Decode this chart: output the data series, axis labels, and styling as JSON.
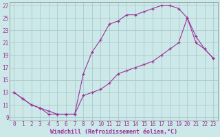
{
  "line1_x": [
    0,
    1,
    2,
    3,
    4,
    5,
    6,
    7,
    8,
    9,
    10,
    11,
    12,
    13,
    14,
    15,
    16,
    17,
    18,
    19,
    20,
    21,
    22,
    23
  ],
  "line1_y": [
    13,
    12,
    11,
    10.5,
    10,
    9.5,
    9.5,
    9.5,
    12.5,
    13,
    13.5,
    14.5,
    16,
    16.5,
    17,
    17.5,
    18,
    19,
    20,
    21,
    25,
    21,
    20,
    18.5
  ],
  "line2_x": [
    0,
    1,
    2,
    3,
    4,
    5,
    6,
    7,
    8,
    9,
    10,
    11,
    12,
    13,
    14,
    15,
    16,
    17,
    18,
    19,
    20,
    21,
    22,
    23
  ],
  "line2_y": [
    13,
    12,
    11,
    10.5,
    9.5,
    9.5,
    9.5,
    9.5,
    16,
    19.5,
    21.5,
    24,
    24.5,
    25.5,
    25.5,
    26,
    26.5,
    27,
    27,
    26.5,
    25,
    22,
    20,
    18.5
  ],
  "color": "#993399",
  "bg_color": "#cce8e8",
  "grid_color": "#aacccc",
  "xlabel": "Windchill (Refroidissement éolien,°C)",
  "xlim": [
    -0.5,
    23.5
  ],
  "ylim": [
    8.5,
    27.5
  ],
  "xticks": [
    0,
    1,
    2,
    3,
    4,
    5,
    6,
    7,
    8,
    9,
    10,
    11,
    12,
    13,
    14,
    15,
    16,
    17,
    18,
    19,
    20,
    21,
    22,
    23
  ],
  "yticks": [
    9,
    11,
    13,
    15,
    17,
    19,
    21,
    23,
    25,
    27
  ],
  "xlabel_fontsize": 6.0,
  "tick_fontsize": 5.5
}
